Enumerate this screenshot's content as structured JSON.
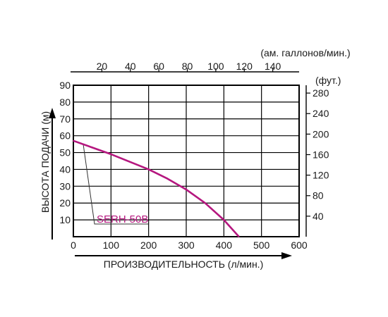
{
  "chart_data": {
    "type": "line",
    "xlabel": "ПРОИЗВОДИТЕЛЬНОСТЬ (л/мин.)",
    "ylabel": "ВЫСОТА ПОДАЧИ (м)",
    "top_axis_label": "(ам. галлонов/мин.)",
    "right_axis_label": "(фут.)",
    "xlim": [
      0,
      600
    ],
    "ylim": [
      0,
      90
    ],
    "x_ticks": [
      0,
      100,
      200,
      300,
      400,
      500,
      600
    ],
    "y_ticks": [
      10,
      20,
      30,
      40,
      50,
      60,
      70,
      80,
      90
    ],
    "top_ticks": [
      20,
      40,
      60,
      80,
      100,
      120,
      140
    ],
    "right_ticks": [
      40,
      80,
      120,
      160,
      200,
      240,
      280
    ],
    "grid": true,
    "colors": {
      "series": "#b5177f",
      "grid": "#000000",
      "frame": "#000000"
    },
    "series": [
      {
        "name": "SERH-50B",
        "x": [
          0,
          50,
          100,
          150,
          200,
          250,
          300,
          350,
          400,
          440
        ],
        "y": [
          57,
          53,
          49,
          44.5,
          40,
          34.5,
          28,
          20,
          10,
          0
        ]
      }
    ]
  }
}
